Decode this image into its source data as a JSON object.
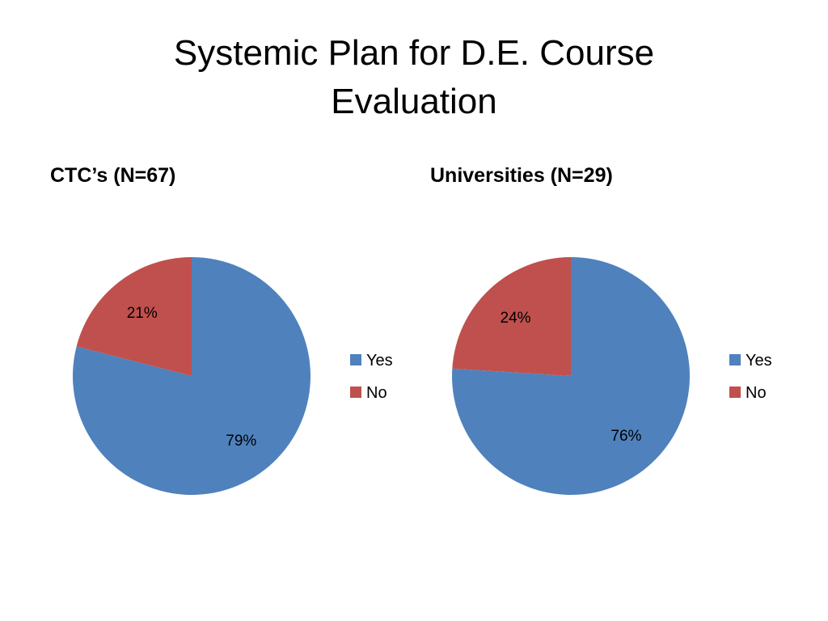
{
  "slide": {
    "title_line1": "Systemic Plan for D.E. Course",
    "title_line2": "Evaluation"
  },
  "colors": {
    "yes": "#4F81BD",
    "no": "#C0504D"
  },
  "chart_data": [
    {
      "type": "pie",
      "title": "CTC’s (N=67)",
      "categories": [
        "Yes",
        "No"
      ],
      "values": [
        79,
        21
      ],
      "data_labels": [
        "79%",
        "21%"
      ],
      "legend": "right"
    },
    {
      "type": "pie",
      "title": "Universities (N=29)",
      "categories": [
        "Yes",
        "No"
      ],
      "values": [
        76,
        24
      ],
      "data_labels": [
        "76%",
        "24%"
      ],
      "legend": "right"
    }
  ]
}
